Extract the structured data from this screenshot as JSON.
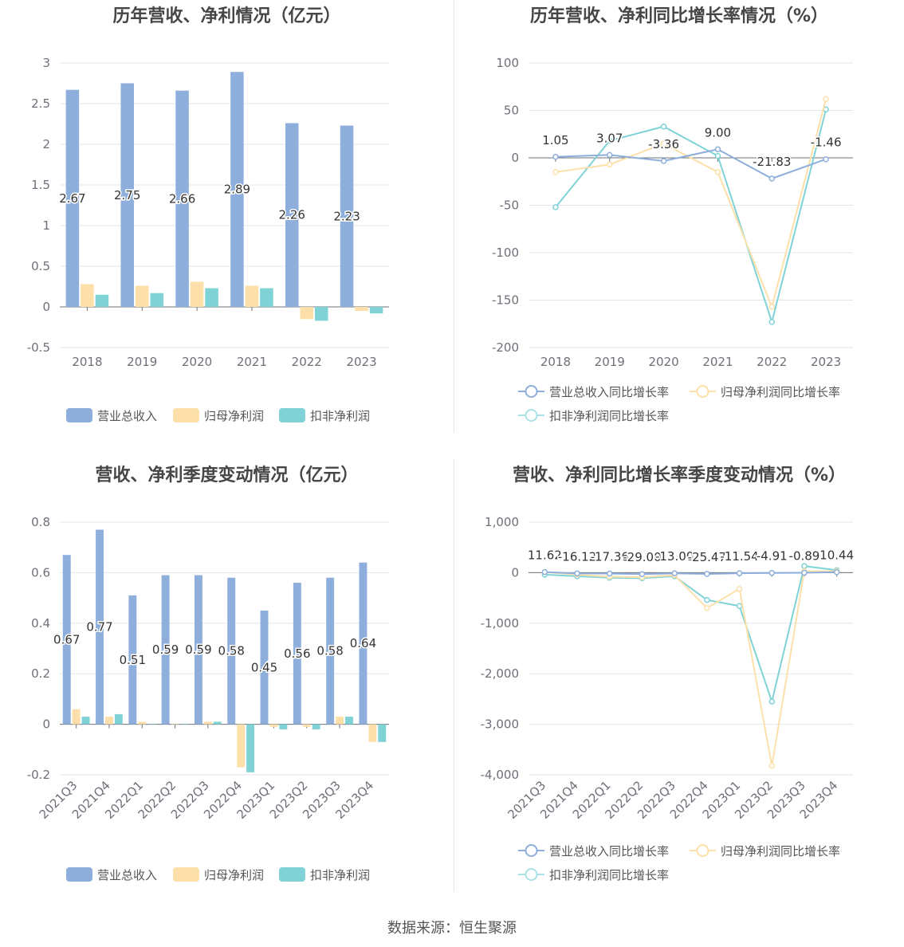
{
  "charts": {
    "annual_amount": {
      "title": "历年营收、净利情况（亿元）"
    },
    "annual_growth": {
      "title": "历年营收、净利同比增长率情况（%）"
    },
    "quarter_amount": {
      "title": "营收、净利季度变动情况（亿元）"
    },
    "quarter_growth": {
      "title": "营收、净利同比增长率季度变动情况（%）"
    }
  },
  "source": "数据来源：恒生聚源",
  "colors": {
    "revenue": "#8eaedb",
    "net_profit": "#fde0a9",
    "deducted_profit": "#7fd3d6",
    "revenue_legend_line": "#8eaedb",
    "net_legend_line": "#fde0a9",
    "deducted_legend_line": "#a8e2e4"
  },
  "chart_data": [
    {
      "id": "annual_amount",
      "type": "bar",
      "title": "历年营收、净利情况（亿元）",
      "categories": [
        "2018",
        "2019",
        "2020",
        "2021",
        "2022",
        "2023"
      ],
      "series": [
        {
          "name": "营业总收入",
          "values": [
            2.67,
            2.75,
            2.66,
            2.89,
            2.26,
            2.23
          ],
          "labels": [
            "2.67",
            "2.75",
            "2.66",
            "2.89",
            "2.26",
            "2.23"
          ]
        },
        {
          "name": "归母净利润",
          "values": [
            0.28,
            0.26,
            0.31,
            0.26,
            -0.15,
            -0.05
          ]
        },
        {
          "name": "扣非净利润",
          "values": [
            0.15,
            0.17,
            0.23,
            0.23,
            -0.17,
            -0.08
          ]
        }
      ],
      "yticks": [
        "3",
        "2.5",
        "2",
        "1.5",
        "1",
        "0.5",
        "0",
        "-0.5"
      ],
      "ylim": [
        -0.5,
        3
      ],
      "legend": "bottom"
    },
    {
      "id": "annual_growth",
      "type": "line",
      "title": "历年营收、净利同比增长率情况（%）",
      "categories": [
        "2018",
        "2019",
        "2020",
        "2021",
        "2022",
        "2023"
      ],
      "series": [
        {
          "name": "营业总收入同比增长率",
          "values": [
            1.05,
            3.07,
            -3.36,
            9.0,
            -21.83,
            -1.46
          ],
          "labels": [
            "1.05",
            "3.07",
            "-3.36",
            "9.00",
            "-21.83",
            "-1.46"
          ]
        },
        {
          "name": "归母净利润同比增长率",
          "values": [
            -15,
            -7,
            15,
            -15,
            -157,
            62
          ]
        },
        {
          "name": "扣非净利润同比增长率",
          "values": [
            -52,
            18,
            33,
            2,
            -173,
            51
          ]
        }
      ],
      "yticks": [
        "100",
        "50",
        "0",
        "-50",
        "-100",
        "-150",
        "-200"
      ],
      "ylim": [
        -200,
        100
      ],
      "legend": "bottom"
    },
    {
      "id": "quarter_amount",
      "type": "bar",
      "title": "营收、净利季度变动情况（亿元）",
      "categories": [
        "2021Q3",
        "2021Q4",
        "2022Q1",
        "2022Q2",
        "2022Q3",
        "2022Q4",
        "2023Q1",
        "2023Q2",
        "2023Q3",
        "2023Q4"
      ],
      "series": [
        {
          "name": "营业总收入",
          "values": [
            0.67,
            0.77,
            0.51,
            0.59,
            0.59,
            0.58,
            0.45,
            0.56,
            0.58,
            0.64
          ],
          "labels": [
            "0.67",
            "0.77",
            "0.51",
            "0.59",
            "0.59",
            "0.58",
            "0.45",
            "0.56",
            "0.58",
            "0.64"
          ]
        },
        {
          "name": "归母净利润",
          "values": [
            0.06,
            0.03,
            0.01,
            0.0,
            0.01,
            -0.17,
            -0.01,
            -0.01,
            0.03,
            -0.07
          ]
        },
        {
          "name": "扣非净利润",
          "values": [
            0.03,
            0.04,
            0.0,
            0.0,
            0.01,
            -0.19,
            -0.02,
            -0.02,
            0.03,
            -0.07
          ]
        }
      ],
      "yticks": [
        "0.8",
        "0.6",
        "0.4",
        "0.2",
        "0",
        "-0.2"
      ],
      "ylim": [
        -0.2,
        0.8
      ],
      "legend": "bottom"
    },
    {
      "id": "quarter_growth",
      "type": "line",
      "title": "营收、净利同比增长率季度变动情况（%）",
      "categories": [
        "2021Q3",
        "2021Q4",
        "2022Q1",
        "2022Q2",
        "2022Q3",
        "2022Q4",
        "2023Q1",
        "2023Q2",
        "2023Q3",
        "2023Q4"
      ],
      "series": [
        {
          "name": "营业总收入同比增长率",
          "values": [
            11.62,
            -16.12,
            -17.36,
            -29.0,
            -13.0,
            -25.47,
            -11.54,
            -4.91,
            -0.89,
            10.44
          ],
          "labels": [
            "11.62",
            "-16.12",
            "-17.36",
            "-29.00",
            "-13.00",
            "-25.47",
            "-11.54",
            "-4.91",
            "-0.89",
            "10.44"
          ]
        },
        {
          "name": "归母净利润同比增长率",
          "values": [
            10,
            -40,
            -80,
            -90,
            -50,
            -700,
            -320,
            -3820,
            30,
            30
          ]
        },
        {
          "name": "扣非净利润同比增长率",
          "values": [
            -40,
            -70,
            -100,
            -110,
            -70,
            -540,
            -660,
            -2550,
            130,
            50
          ]
        }
      ],
      "yticks": [
        "1,000",
        "0",
        "-1,000",
        "-2,000",
        "-3,000",
        "-4,000"
      ],
      "ylim": [
        -4000,
        1000
      ],
      "legend": "bottom"
    }
  ]
}
